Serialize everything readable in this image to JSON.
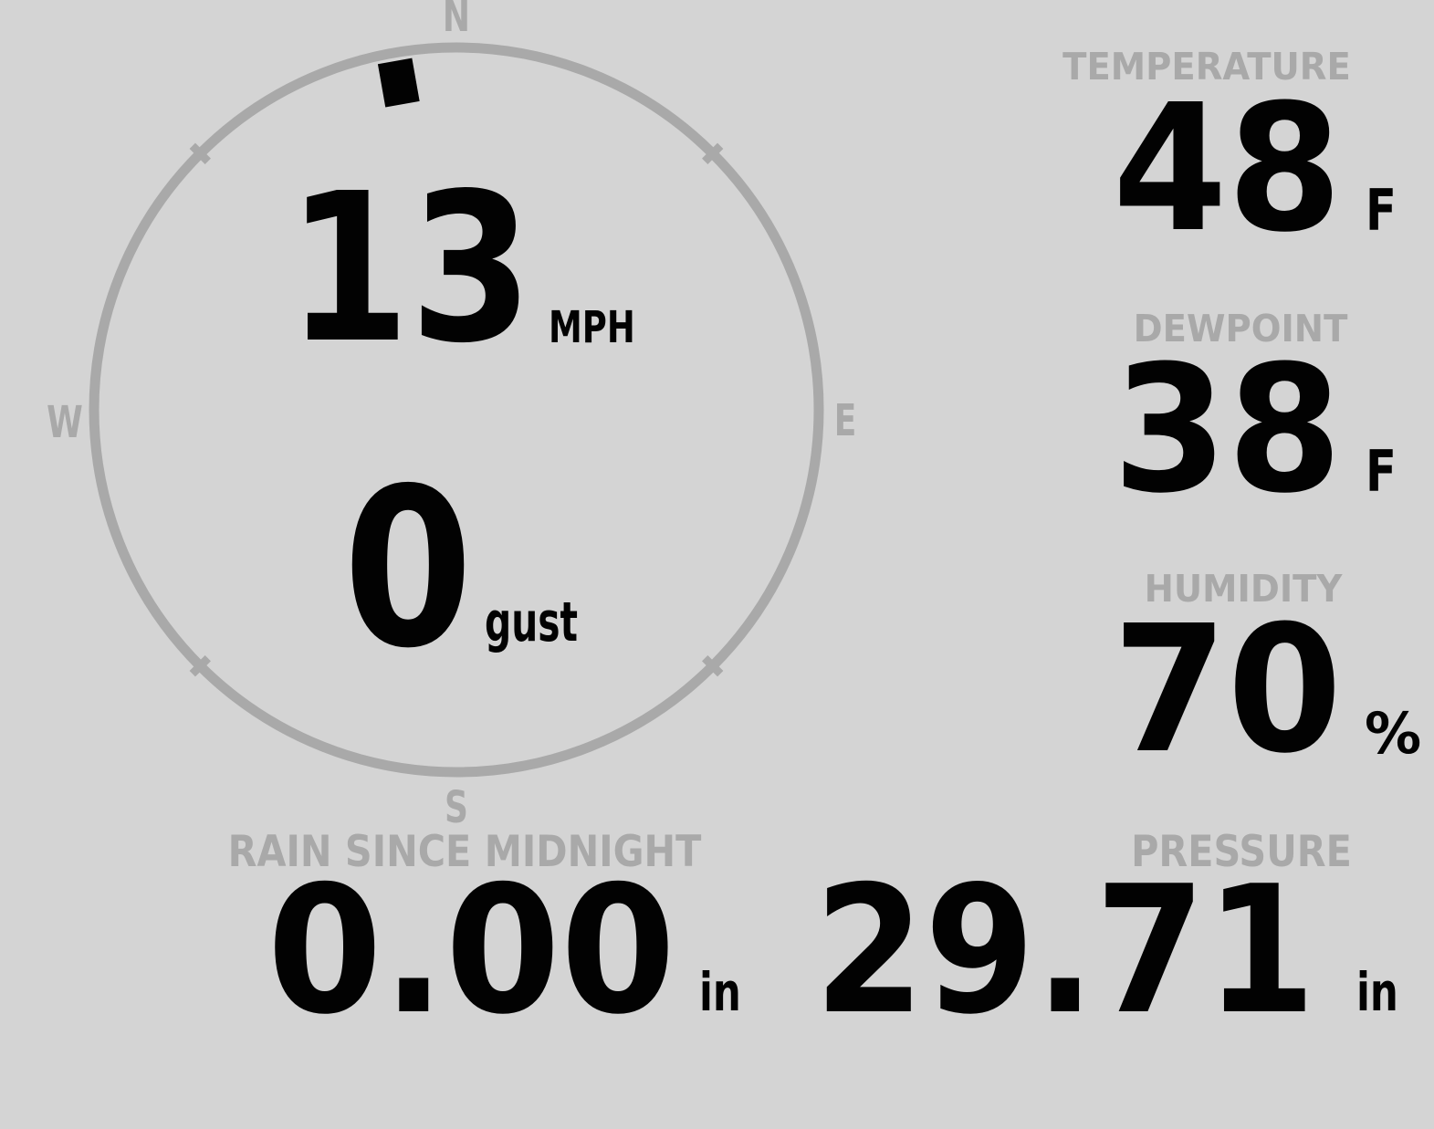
{
  "colors": {
    "background": "#d4d4d4",
    "muted_gray": "#a9a9a9",
    "ink_black": "#020202"
  },
  "wind": {
    "speed_value": "13",
    "speed_unit": "MPH",
    "gust_value": "0",
    "gust_label": "gust",
    "direction_degrees": 350,
    "compass_labels": {
      "north": "N",
      "east": "E",
      "south": "S",
      "west": "W"
    }
  },
  "metrics": {
    "temperature": {
      "label": "TEMPERATURE",
      "value": "48",
      "unit": "F"
    },
    "dewpoint": {
      "label": "DEWPOINT",
      "value": "38",
      "unit": "F"
    },
    "humidity": {
      "label": "HUMIDITY",
      "value": "70",
      "unit": "%"
    },
    "rain": {
      "label": "RAIN SINCE MIDNIGHT",
      "value": "0.00",
      "unit": "in"
    },
    "pressure": {
      "label": "PRESSURE",
      "value": "29.71",
      "unit": "in"
    }
  }
}
